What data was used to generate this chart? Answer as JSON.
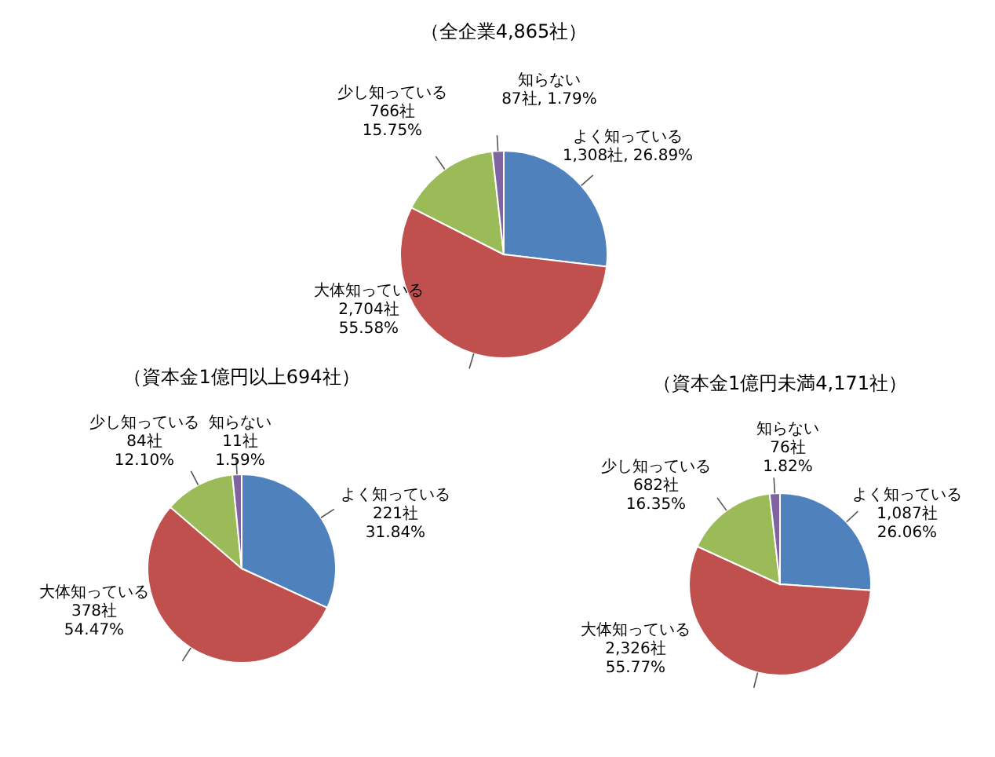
{
  "chart_data": [
    {
      "type": "pie",
      "title": "（全企業4,865社）",
      "categories": [
        "よく知っている",
        "大体知っている",
        "少し知っている",
        "知らない"
      ],
      "values": [
        1308,
        2704,
        766,
        87
      ],
      "colors": [
        "#4f81bd",
        "#c0504d",
        "#9bbb59",
        "#8064a2"
      ],
      "value_labels": [
        "1,308社, 26.89%",
        "2,704社\n55.58%",
        "766社\n15.75%",
        "87社, 1.79%"
      ]
    },
    {
      "type": "pie",
      "title": "（資本金1億円以上694社）",
      "categories": [
        "よく知っている",
        "大体知っている",
        "少し知っている",
        "知らない"
      ],
      "values": [
        221,
        378,
        84,
        11
      ],
      "colors": [
        "#4f81bd",
        "#c0504d",
        "#9bbb59",
        "#8064a2"
      ],
      "value_labels": [
        "221社\n31.84%",
        "378社\n54.47%",
        "84社\n12.10%",
        "11社\n1.59%"
      ]
    },
    {
      "type": "pie",
      "title": "（資本金1億円未満4,171社）",
      "categories": [
        "よく知っている",
        "大体知っている",
        "少し知っている",
        "知らない"
      ],
      "values": [
        1087,
        2326,
        682,
        76
      ],
      "colors": [
        "#4f81bd",
        "#c0504d",
        "#9bbb59",
        "#8064a2"
      ],
      "value_labels": [
        "1,087社\n26.06%",
        "2,326社\n55.77%",
        "682社\n16.35%",
        "76社\n1.82%"
      ]
    }
  ]
}
